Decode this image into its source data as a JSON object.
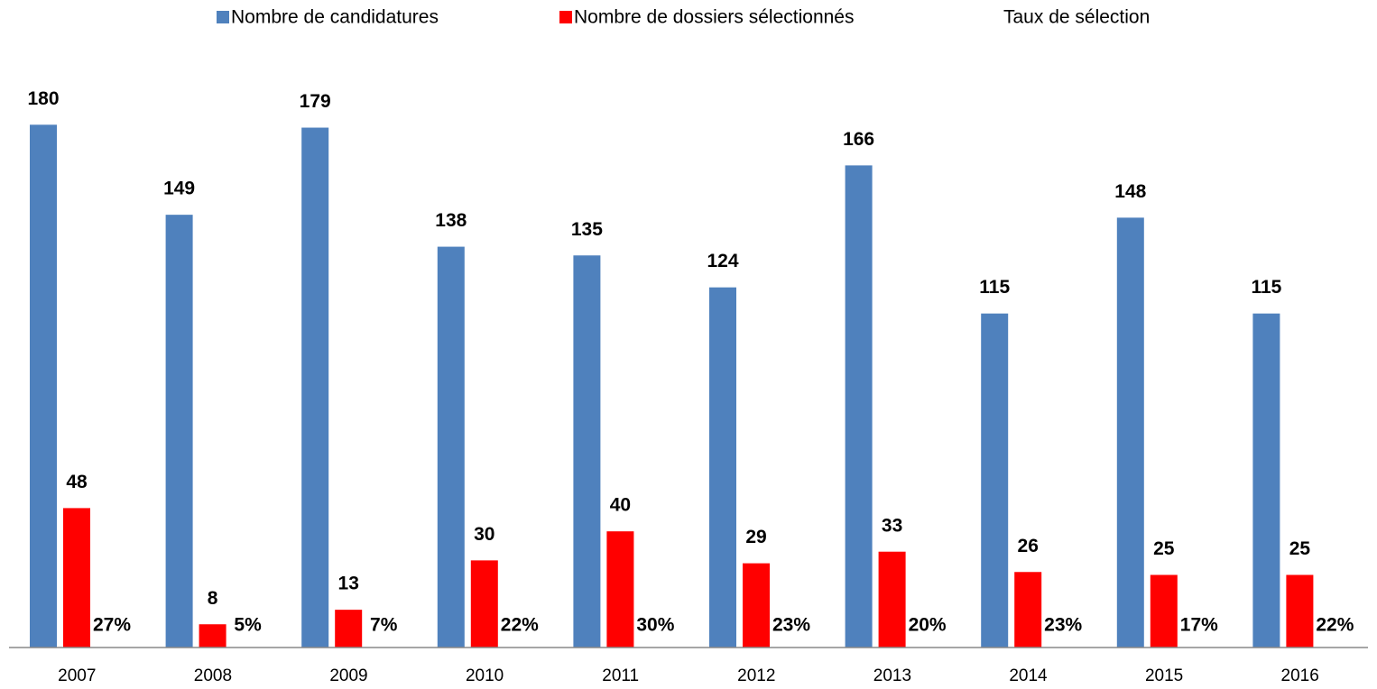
{
  "chart_data": {
    "type": "bar",
    "categories": [
      "2007",
      "2008",
      "2009",
      "2010",
      "2011",
      "2012",
      "2013",
      "2014",
      "2015",
      "2016"
    ],
    "series": [
      {
        "name": "Nombre de candidatures",
        "color": "#4f81bd",
        "values": [
          180,
          149,
          179,
          138,
          135,
          124,
          166,
          115,
          148,
          115
        ]
      },
      {
        "name": "Nombre de dossiers sélectionnés",
        "color": "#ff0000",
        "values": [
          48,
          8,
          13,
          30,
          40,
          29,
          33,
          26,
          25,
          25
        ]
      },
      {
        "name": "Taux de sélection",
        "color": "none",
        "values": [
          27,
          5,
          7,
          22,
          30,
          23,
          20,
          23,
          17,
          22
        ],
        "value_labels": [
          "27%",
          "5%",
          "7%",
          "22%",
          "30%",
          "23%",
          "20%",
          "23%",
          "17%",
          "22%"
        ]
      }
    ],
    "ylim": [
      0,
      195
    ],
    "legend": "top"
  }
}
